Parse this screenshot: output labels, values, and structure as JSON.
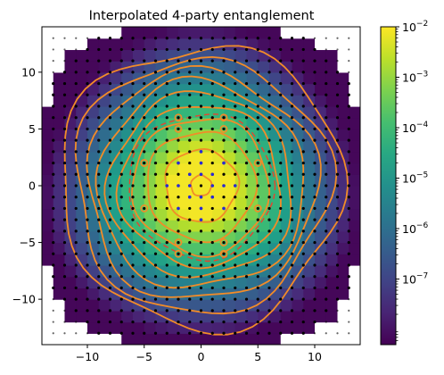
{
  "chart_data": {
    "type": "heatmap",
    "title": "Interpolated 4-party entanglement",
    "xlabel": "",
    "ylabel": "",
    "xlim": [
      -14,
      14
    ],
    "ylim": [
      -14,
      14
    ],
    "x_ticks": [
      {
        "value": -10,
        "label": "−10"
      },
      {
        "value": -5,
        "label": "−5"
      },
      {
        "value": 0,
        "label": "0"
      },
      {
        "value": 5,
        "label": "5"
      },
      {
        "value": 10,
        "label": "10"
      }
    ],
    "y_ticks": [
      {
        "value": 10,
        "label": "10"
      },
      {
        "value": 5,
        "label": "5"
      },
      {
        "value": 0,
        "label": "0"
      },
      {
        "value": -5,
        "label": "−5"
      },
      {
        "value": -10,
        "label": "−10"
      }
    ],
    "colorbar": {
      "scale": "log",
      "min_exp": -8.3,
      "max_exp": -2,
      "colormap": "viridis",
      "ticks": [
        {
          "exp": -2,
          "label": "10",
          "sup": "−2"
        },
        {
          "exp": -3,
          "label": "10",
          "sup": "−3"
        },
        {
          "exp": -4,
          "label": "10",
          "sup": "−4"
        },
        {
          "exp": -5,
          "label": "10",
          "sup": "−5"
        },
        {
          "exp": -6,
          "label": "10",
          "sup": "−6"
        },
        {
          "exp": -7,
          "label": "10",
          "sup": "−7"
        }
      ]
    },
    "field": {
      "peak_exp": -2.1,
      "plateau_radius": 6,
      "falloff_per_unit": 0.55,
      "background_exp": -8.2
    },
    "sample_grid": {
      "step": 1,
      "range": [
        -13,
        13
      ]
    },
    "contour_radii": [
      0.9,
      3.2,
      4.8,
      6.0,
      7.1,
      8.1,
      9.1,
      10.1,
      11.2,
      12.4
    ],
    "dashed_contour_radius": 6.4,
    "orange_points": [
      [
        -2,
        6
      ],
      [
        2,
        6
      ],
      [
        -5,
        2
      ],
      [
        5,
        2
      ],
      [
        -5,
        -2
      ],
      [
        5,
        -2
      ],
      [
        -2,
        -5
      ],
      [
        2,
        -5
      ],
      [
        -2,
        5
      ],
      [
        2,
        5
      ],
      [
        -5,
        2
      ],
      [
        -2,
        -6
      ],
      [
        2,
        -6
      ]
    ],
    "blue_points": [
      [
        0,
        3
      ],
      [
        0,
        2
      ],
      [
        0,
        -2
      ],
      [
        0,
        -3
      ],
      [
        -3,
        0
      ],
      [
        3,
        0
      ],
      [
        -2,
        0
      ],
      [
        2,
        0
      ],
      [
        -1,
        -1
      ],
      [
        1,
        -1
      ],
      [
        -1,
        1
      ],
      [
        1,
        1
      ],
      [
        -2,
        -2
      ],
      [
        2,
        2
      ],
      [
        -2,
        2
      ],
      [
        2,
        -2
      ],
      [
        0,
        -1
      ],
      [
        0,
        1
      ],
      [
        -1,
        0
      ],
      [
        1,
        0
      ]
    ],
    "colors": {
      "contour": "#f28c28",
      "dashed_contour": "#e8432e",
      "orange_point": "#f28c28",
      "blue_point": "#2a2ad4",
      "grid_point": "#000000",
      "outside": "#ffffff"
    },
    "grid": false,
    "legend": "none"
  }
}
